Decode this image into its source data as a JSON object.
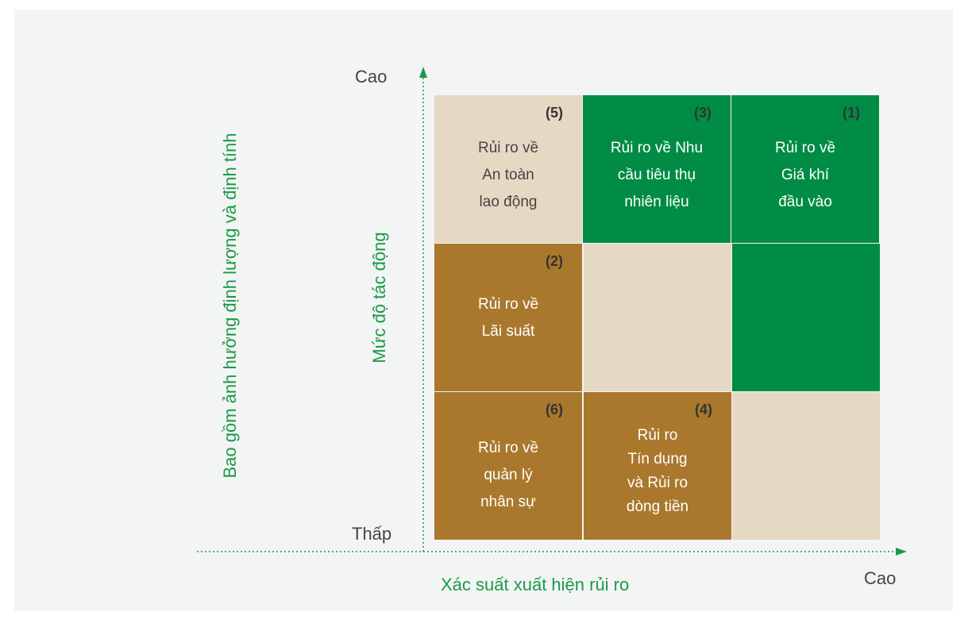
{
  "axes": {
    "y_high": "Cao",
    "y_low": "Thấp",
    "y_title": "Mức độ tác động",
    "y_note": "Bao gồm ảnh hưởng định lượng và định tính",
    "x_high": "Cao",
    "x_title": "Xác suất xuất hiện rủi ro"
  },
  "cells": [
    {
      "number": "(5)",
      "lines": [
        "Rủi ro về",
        "An toàn",
        "lao động"
      ]
    },
    {
      "number": "(3)",
      "lines": [
        "Rủi ro về Nhu",
        "cầu tiêu thụ",
        "nhiên liệu"
      ]
    },
    {
      "number": "(1)",
      "lines": [
        "Rủi ro về",
        "Giá khí",
        "đầu vào"
      ]
    },
    {
      "number": "(2)",
      "lines": [
        "Rủi ro về",
        "Lãi suất"
      ]
    },
    {
      "number": "(6)",
      "lines": [
        "Rủi ro về",
        "quản lý",
        "nhân sự"
      ]
    },
    {
      "number": "(4)",
      "lines": [
        "Rủi ro",
        "Tín dụng",
        "và Rủi ro",
        "dòng tiền"
      ]
    }
  ]
}
